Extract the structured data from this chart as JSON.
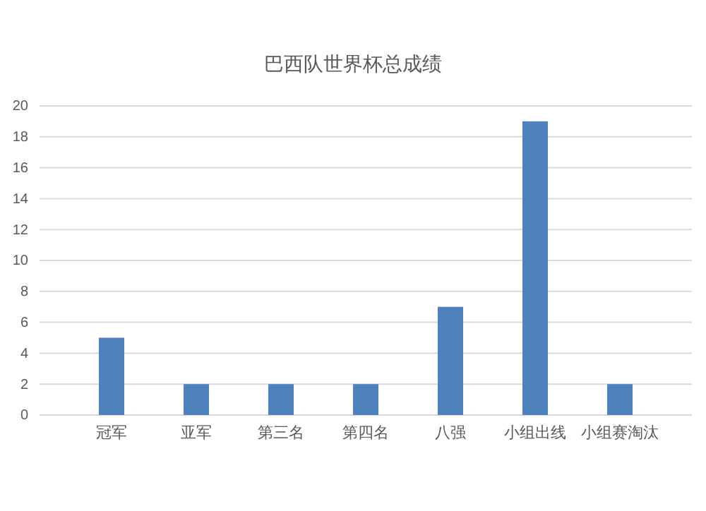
{
  "chart_data": {
    "type": "bar",
    "title": "巴西队世界杯总成绩",
    "categories": [
      "冠军",
      "亚军",
      "第三名",
      "第四名",
      "八强",
      "小组出线",
      "小组赛淘汰"
    ],
    "values": [
      5,
      2,
      2,
      2,
      7,
      19,
      2
    ],
    "color": "#4f81bd",
    "ylim": [
      0,
      20
    ],
    "yticks": [
      0,
      2,
      4,
      6,
      8,
      10,
      12,
      14,
      16,
      18,
      20
    ],
    "grid": "y"
  }
}
